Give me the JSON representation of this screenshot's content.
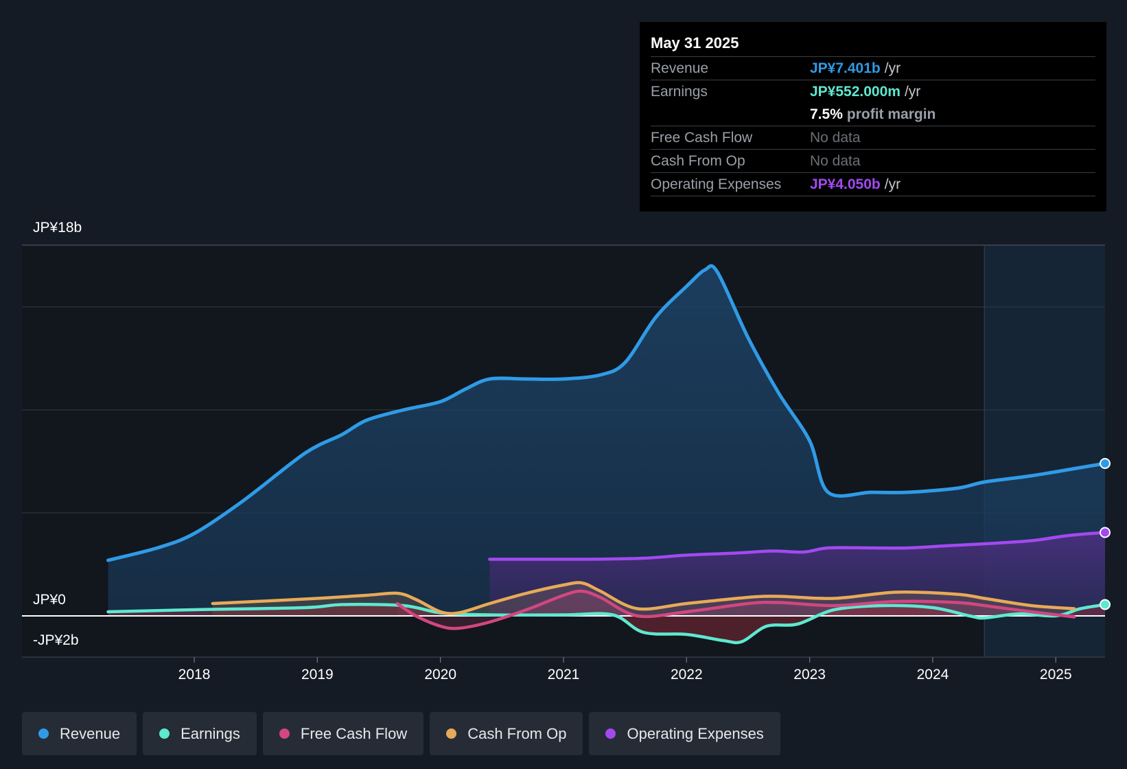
{
  "tooltip": {
    "date": "May 31 2025",
    "rows": {
      "revenue": {
        "label": "Revenue",
        "value": "JP¥7.401b",
        "unit": "/yr"
      },
      "earnings": {
        "label": "Earnings",
        "value": "JP¥552.000m",
        "unit": "/yr"
      },
      "margin": {
        "value": "7.5%",
        "label": "profit margin"
      },
      "fcf": {
        "label": "Free Cash Flow",
        "value": "No data"
      },
      "cfo": {
        "label": "Cash From Op",
        "value": "No data"
      },
      "opex": {
        "label": "Operating Expenses",
        "value": "JP¥4.050b",
        "unit": "/yr"
      }
    }
  },
  "colors": {
    "revenue": "#2f9be6",
    "earnings": "#5ee8d0",
    "fcf": "#d2477f",
    "cfo": "#e8aa58",
    "opex": "#a349f0"
  },
  "legend": {
    "revenue": "Revenue",
    "earnings": "Earnings",
    "fcf": "Free Cash Flow",
    "cfo": "Cash From Op",
    "opex": "Operating Expenses"
  },
  "chart_data": {
    "type": "line",
    "title": "",
    "y_unit": "JP¥ billions",
    "ylim": [
      -2,
      18
    ],
    "y_tick_labels": {
      "top": "JP¥18b",
      "zero": "JP¥0",
      "bottom": "-JP¥2b"
    },
    "x_tick_labels": [
      "2018",
      "2019",
      "2020",
      "2021",
      "2022",
      "2023",
      "2024",
      "2025"
    ],
    "x_tick_values": [
      2018,
      2019,
      2020,
      2021,
      2022,
      2023,
      2024,
      2025
    ],
    "xlim": [
      2016.6,
      2025.4
    ],
    "forecast_start": 2024.42,
    "series": [
      {
        "key": "revenue",
        "name": "Revenue",
        "x": [
          2017.3,
          2017.7,
          2018.0,
          2018.4,
          2018.9,
          2019.2,
          2019.4,
          2019.7,
          2020.0,
          2020.2,
          2020.4,
          2020.7,
          2021.0,
          2021.3,
          2021.5,
          2021.75,
          2022.0,
          2022.15,
          2022.25,
          2022.5,
          2022.75,
          2023.0,
          2023.15,
          2023.5,
          2023.8,
          2024.2,
          2024.42,
          2024.8,
          2025.2,
          2025.4
        ],
        "y": [
          2.7,
          3.3,
          4.0,
          5.6,
          7.9,
          8.8,
          9.5,
          10.0,
          10.4,
          11.0,
          11.5,
          11.5,
          11.5,
          11.7,
          12.3,
          14.5,
          16.0,
          16.8,
          16.7,
          13.5,
          10.8,
          8.5,
          6.0,
          6.0,
          6.0,
          6.2,
          6.5,
          6.8,
          7.2,
          7.4
        ]
      },
      {
        "key": "earnings",
        "name": "Earnings",
        "x": [
          2017.3,
          2018.0,
          2018.9,
          2019.2,
          2019.7,
          2020.0,
          2020.4,
          2021.0,
          2021.4,
          2021.65,
          2022.0,
          2022.3,
          2022.45,
          2022.65,
          2022.9,
          2023.2,
          2023.6,
          2024.0,
          2024.3,
          2024.42,
          2024.7,
          2025.0,
          2025.2,
          2025.4
        ],
        "y": [
          0.2,
          0.3,
          0.4,
          0.55,
          0.5,
          0.15,
          0.05,
          0.05,
          0.05,
          -0.8,
          -0.9,
          -1.2,
          -1.25,
          -0.5,
          -0.4,
          0.3,
          0.5,
          0.4,
          0.0,
          -0.1,
          0.1,
          0.0,
          0.35,
          0.55
        ]
      },
      {
        "key": "fcf",
        "name": "Free Cash Flow",
        "x": [
          2019.65,
          2019.8,
          2020.0,
          2020.15,
          2020.4,
          2020.7,
          2021.0,
          2021.15,
          2021.3,
          2021.6,
          2022.0,
          2022.5,
          2022.75,
          2023.2,
          2023.7,
          2024.2,
          2024.42,
          2024.8,
          2025.15
        ],
        "y": [
          0.6,
          0.0,
          -0.5,
          -0.6,
          -0.3,
          0.3,
          1.0,
          1.2,
          0.9,
          0.0,
          0.2,
          0.6,
          0.65,
          0.5,
          0.7,
          0.65,
          0.5,
          0.2,
          -0.05
        ]
      },
      {
        "key": "cfo",
        "name": "Cash From Op",
        "x": [
          2018.15,
          2018.5,
          2019.0,
          2019.4,
          2019.65,
          2019.8,
          2020.0,
          2020.15,
          2020.4,
          2020.7,
          2021.0,
          2021.15,
          2021.3,
          2021.6,
          2022.0,
          2022.5,
          2022.75,
          2023.2,
          2023.7,
          2024.2,
          2024.42,
          2024.8,
          2025.15
        ],
        "y": [
          0.6,
          0.7,
          0.85,
          1.0,
          1.1,
          0.8,
          0.2,
          0.15,
          0.6,
          1.1,
          1.5,
          1.6,
          1.2,
          0.35,
          0.6,
          0.9,
          0.95,
          0.85,
          1.15,
          1.05,
          0.85,
          0.5,
          0.35
        ]
      },
      {
        "key": "opex",
        "name": "Operating Expenses",
        "x": [
          2020.4,
          2020.8,
          2021.2,
          2021.65,
          2022.0,
          2022.4,
          2022.7,
          2022.95,
          2023.15,
          2023.5,
          2023.8,
          2024.1,
          2024.42,
          2024.8,
          2025.1,
          2025.4
        ],
        "y": [
          2.75,
          2.75,
          2.75,
          2.8,
          2.95,
          3.05,
          3.15,
          3.1,
          3.3,
          3.3,
          3.3,
          3.4,
          3.5,
          3.65,
          3.9,
          4.05
        ]
      }
    ]
  }
}
